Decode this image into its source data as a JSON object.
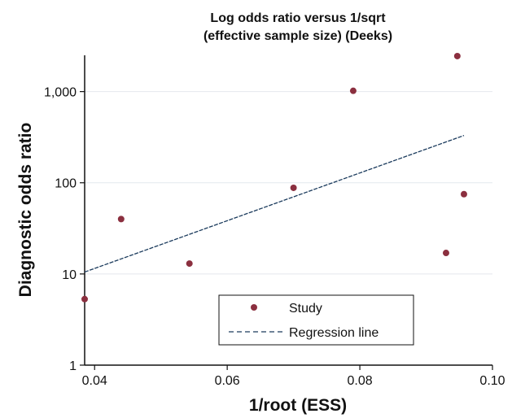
{
  "chart_data": {
    "type": "scatter",
    "title": [
      "Log odds ratio versus 1/sqrt",
      "(effective sample size) (Deeks)"
    ],
    "xlabel": "1/root (ESS)",
    "ylabel": "Diagnostic odds ratio",
    "xlim": [
      0.0385,
      0.1
    ],
    "ylim": [
      1,
      2500
    ],
    "y_scale": "log",
    "x_ticks": [
      {
        "value": 0.04,
        "label": "0.04"
      },
      {
        "value": 0.06,
        "label": "0.06"
      },
      {
        "value": 0.08,
        "label": "0.08"
      },
      {
        "value": 0.1,
        "label": "0.10"
      }
    ],
    "y_ticks": [
      {
        "value": 1,
        "label": "1"
      },
      {
        "value": 10,
        "label": "10"
      },
      {
        "value": 100,
        "label": "100"
      },
      {
        "value": 1000,
        "label": "1,000"
      }
    ],
    "grid": true,
    "legend_position": "bottom-center",
    "series": [
      {
        "name": "Study",
        "kind": "scatter",
        "color": "#8b2f3f",
        "points": [
          {
            "x": 0.0385,
            "y": 5.3
          },
          {
            "x": 0.044,
            "y": 40
          },
          {
            "x": 0.0543,
            "y": 13
          },
          {
            "x": 0.07,
            "y": 88
          },
          {
            "x": 0.079,
            "y": 1020
          },
          {
            "x": 0.093,
            "y": 17
          },
          {
            "x": 0.0947,
            "y": 2450
          },
          {
            "x": 0.0957,
            "y": 75
          }
        ]
      },
      {
        "name": "Regression line",
        "kind": "line",
        "style": "dashed",
        "color": "#1a3a5c",
        "points": [
          {
            "x": 0.0385,
            "y": 10.5
          },
          {
            "x": 0.0957,
            "y": 330
          }
        ]
      }
    ]
  }
}
